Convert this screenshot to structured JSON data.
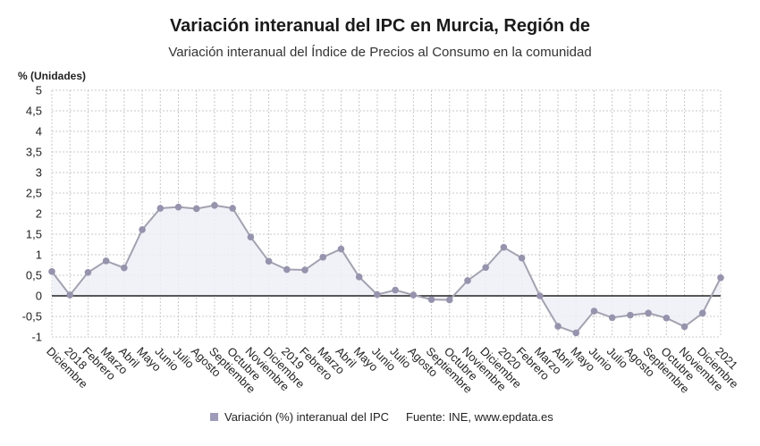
{
  "title": "Variación interanual del IPC en Murcia, Región de",
  "subtitle": "Variación interanual del Índice de Precios al Consumo en la comunidad",
  "legend_label": "Variación (%) interanual del IPC",
  "source": "Fuente: INE, www.epdata.es",
  "colors": {
    "line": "#a3a2b0",
    "marker": "#9693ad",
    "fill": "#eeeef7",
    "grid": "#c8c8c8",
    "zero": "#222222"
  },
  "chart_data": {
    "type": "area",
    "ylabel": "% (Unidades)",
    "ylim": [
      -1,
      5
    ],
    "yticks": [
      "-1",
      "-0,5",
      "0",
      "0,5",
      "1",
      "1,5",
      "2",
      "2,5",
      "3",
      "3,5",
      "4",
      "4,5",
      "5"
    ],
    "grid": true,
    "categories": [
      "Diciembre",
      "2018",
      "Febrero",
      "Marzo",
      "Abril",
      "Mayo",
      "Junio",
      "Julio",
      "Agosto",
      "Septiembre",
      "Octubre",
      "Noviembre",
      "Diciembre",
      "2019",
      "Febrero",
      "Marzo",
      "Abril",
      "Mayo",
      "Junio",
      "Julio",
      "Agosto",
      "Septiembre",
      "Octubre",
      "Noviembre",
      "Diciembre",
      "2020",
      "Febrero",
      "Marzo",
      "Abril",
      "Mayo",
      "Junio",
      "Julio",
      "Agosto",
      "Septiembre",
      "Octubre",
      "Noviembre",
      "Diciembre",
      "2021"
    ],
    "series": [
      {
        "name": "Variación (%) interanual del IPC",
        "values": [
          0.59,
          0.02,
          0.57,
          0.85,
          0.68,
          1.61,
          2.13,
          2.16,
          2.12,
          2.2,
          2.13,
          1.43,
          0.84,
          0.64,
          0.63,
          0.94,
          1.14,
          0.46,
          0.03,
          0.14,
          0.02,
          -0.09,
          -0.1,
          0.37,
          0.69,
          1.18,
          0.92,
          0.0,
          -0.74,
          -0.9,
          -0.37,
          -0.53,
          -0.47,
          -0.42,
          -0.54,
          -0.75,
          -0.42,
          0.44
        ]
      }
    ]
  }
}
